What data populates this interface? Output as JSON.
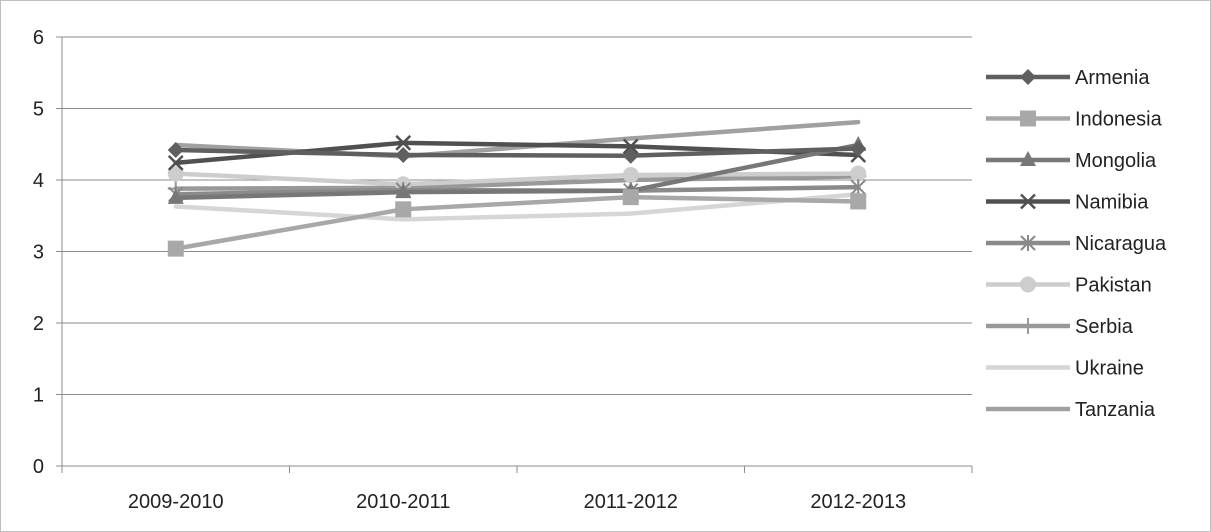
{
  "chart_data": {
    "type": "line",
    "title": "",
    "xlabel": "",
    "ylabel": "",
    "categories": [
      "2009-2010",
      "2010-2011",
      "2011-2012",
      "2012-2013"
    ],
    "ylim": [
      0,
      6
    ],
    "yticks": [
      "0",
      "1",
      "2",
      "3",
      "4",
      "5",
      "6"
    ],
    "grid": "horizontal",
    "legend": "right",
    "series": [
      {
        "name": "Armenia",
        "values": [
          4.42,
          4.35,
          4.34,
          4.44
        ],
        "color": "#5f5f5f",
        "marker": "diamond"
      },
      {
        "name": "Indonesia",
        "values": [
          3.04,
          3.59,
          3.76,
          3.7
        ],
        "color": "#a8a8a8",
        "marker": "square"
      },
      {
        "name": "Mongolia",
        "values": [
          3.75,
          3.83,
          3.85,
          4.49
        ],
        "color": "#777777",
        "marker": "triangle"
      },
      {
        "name": "Namibia",
        "values": [
          4.24,
          4.52,
          4.47,
          4.35
        ],
        "color": "#505050",
        "marker": "x"
      },
      {
        "name": "Nicaragua",
        "values": [
          3.8,
          3.86,
          3.85,
          3.9
        ],
        "color": "#8a8a8a",
        "marker": "asterisk"
      },
      {
        "name": "Pakistan",
        "values": [
          4.09,
          3.94,
          4.07,
          4.09
        ],
        "color": "#cdcdcd",
        "marker": "circle"
      },
      {
        "name": "Serbia",
        "values": [
          3.88,
          3.89,
          4.0,
          4.05
        ],
        "color": "#999999",
        "marker": "plus"
      },
      {
        "name": "Ukraine",
        "values": [
          3.63,
          3.45,
          3.53,
          3.8
        ],
        "color": "#d6d6d6",
        "marker": "none"
      },
      {
        "name": "Tanzania",
        "values": [
          4.49,
          4.33,
          4.58,
          4.81
        ],
        "color": "#a0a0a0",
        "marker": "none"
      }
    ]
  }
}
